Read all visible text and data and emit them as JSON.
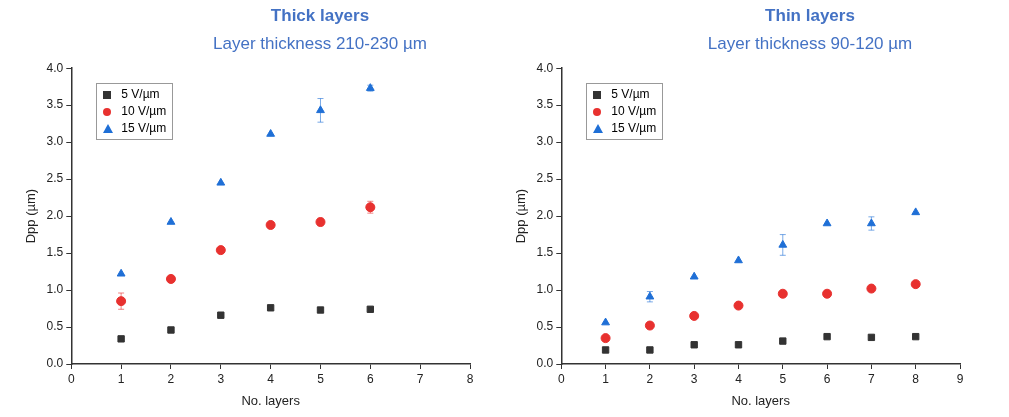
{
  "chart_data": [
    {
      "type": "scatter",
      "title": "Thick layers",
      "subtitle": "Layer thickness 210-230 µm",
      "xlabel": "No. layers",
      "ylabel": "Dpp (µm)",
      "x": [
        1,
        2,
        3,
        4,
        5,
        6
      ],
      "series": [
        {
          "name": "5 V/µm",
          "color": "#333333",
          "marker": "square",
          "values": [
            0.34,
            0.46,
            0.66,
            0.76,
            0.73,
            0.74
          ]
        },
        {
          "name": "10 V/µm",
          "color": "#e8312f",
          "marker": "circle",
          "values": [
            0.85,
            1.15,
            1.54,
            1.88,
            1.92,
            2.12
          ],
          "errors": [
            0.11,
            null,
            null,
            null,
            0.05,
            0.08
          ]
        },
        {
          "name": "15 V/µm",
          "color": "#1f6fd6",
          "marker": "triangle",
          "values": [
            1.22,
            1.92,
            2.45,
            3.11,
            3.43,
            3.73
          ],
          "errors": [
            null,
            null,
            null,
            null,
            0.16,
            0.04
          ]
        }
      ],
      "xlim": [
        0,
        8
      ],
      "xticks": [
        0,
        1,
        2,
        3,
        4,
        5,
        6,
        7,
        8
      ],
      "ylim": [
        0,
        4
      ],
      "yticks": [
        {
          "value": 0,
          "label": "0.0"
        },
        0.5,
        {
          "value": 1,
          "label": "1.0"
        },
        1.5,
        {
          "value": 2,
          "label": "2.0"
        },
        2.5,
        {
          "value": 3,
          "label": "3.0"
        },
        3.5,
        {
          "value": 4,
          "label": "4.0"
        }
      ],
      "legend": "top left"
    },
    {
      "type": "scatter",
      "title": "Thin layers",
      "subtitle": "Layer thickness 90-120 µm",
      "xlabel": "No. layers",
      "ylabel": "Dpp (µm)",
      "x": [
        1,
        2,
        3,
        4,
        5,
        6,
        7,
        8
      ],
      "series": [
        {
          "name": "5 V/µm",
          "color": "#333333",
          "marker": "square",
          "values": [
            0.19,
            0.19,
            0.26,
            0.26,
            0.31,
            0.37,
            0.36,
            0.37
          ]
        },
        {
          "name": "10 V/µm",
          "color": "#e8312f",
          "marker": "circle",
          "values": [
            0.35,
            0.52,
            0.65,
            0.79,
            0.95,
            0.95,
            1.02,
            1.08
          ]
        },
        {
          "name": "15 V/µm",
          "color": "#1f6fd6",
          "marker": "triangle",
          "values": [
            0.56,
            0.91,
            1.18,
            1.4,
            1.61,
            1.9,
            1.9,
            2.05
          ],
          "errors": [
            null,
            0.07,
            null,
            null,
            0.14,
            null,
            0.09,
            null
          ]
        }
      ],
      "xlim": [
        0,
        9
      ],
      "xticks": [
        0,
        1,
        2,
        3,
        4,
        5,
        6,
        7,
        8,
        9
      ],
      "ylim": [
        0,
        4
      ],
      "yticks": [
        {
          "value": 0,
          "label": "0.0"
        },
        0.5,
        {
          "value": 1,
          "label": "1.0"
        },
        1.5,
        {
          "value": 2,
          "label": "2.0"
        },
        2.5,
        {
          "value": 3,
          "label": "3.0"
        },
        3.5,
        {
          "value": 4,
          "label": "4.0"
        }
      ],
      "legend": "top left"
    }
  ]
}
